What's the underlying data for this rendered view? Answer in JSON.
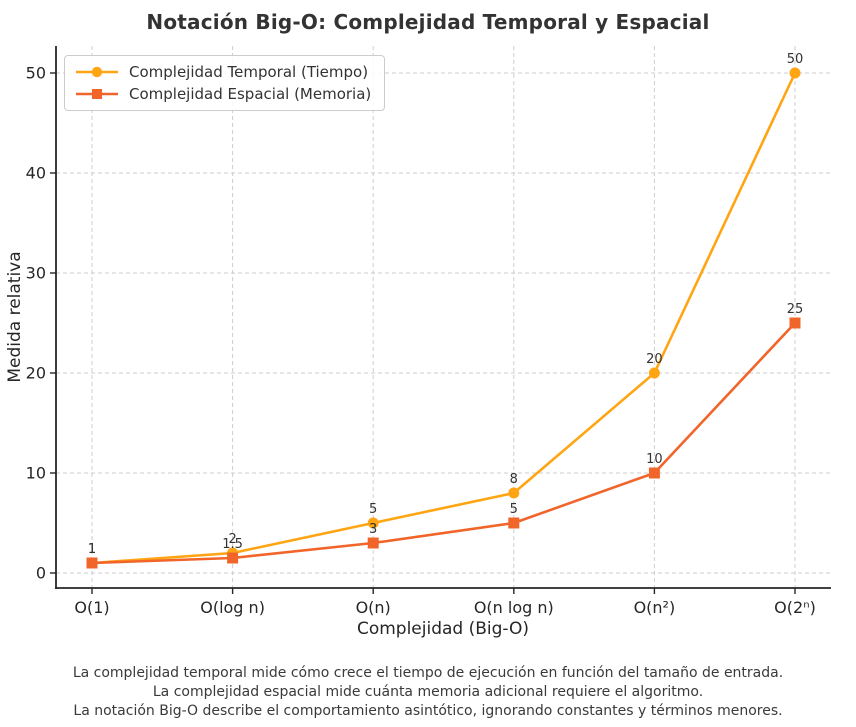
{
  "chart_data": {
    "type": "line",
    "title": "Notación Big-O: Complejidad Temporal y Espacial",
    "categories": [
      "O(1)",
      "O(log n)",
      "O(n)",
      "O(n log n)",
      "O(n²)",
      "O(2ⁿ)"
    ],
    "series": [
      {
        "name": "Complejidad Temporal (Tiempo)",
        "marker": "circle",
        "color": "#FFA513",
        "values": [
          1,
          2,
          5,
          8,
          20,
          50
        ]
      },
      {
        "name": "Complejidad Espacial (Memoria)",
        "marker": "square",
        "color": "#F1652A",
        "values": [
          1,
          1.5,
          3,
          5,
          10,
          25
        ]
      }
    ],
    "xlabel": "Complejidad (Big-O)",
    "ylabel": "Medida relativa",
    "yticks": [
      0,
      10,
      20,
      30,
      40,
      50
    ],
    "ylim": [
      -1.5,
      52.7
    ],
    "grid": true,
    "grid_style": "dashed",
    "grid_color": "#cdcdcd",
    "legend_position": "upper-left",
    "point_labels": true
  },
  "footer": {
    "line1": "La complejidad temporal mide cómo crece el tiempo de ejecución en función del tamaño de entrada.",
    "line2": "La complejidad espacial mide cuánta memoria adicional requiere el algoritmo.",
    "line3": "La notación Big-O describe el comportamiento asintótico, ignorando constantes y términos menores."
  }
}
